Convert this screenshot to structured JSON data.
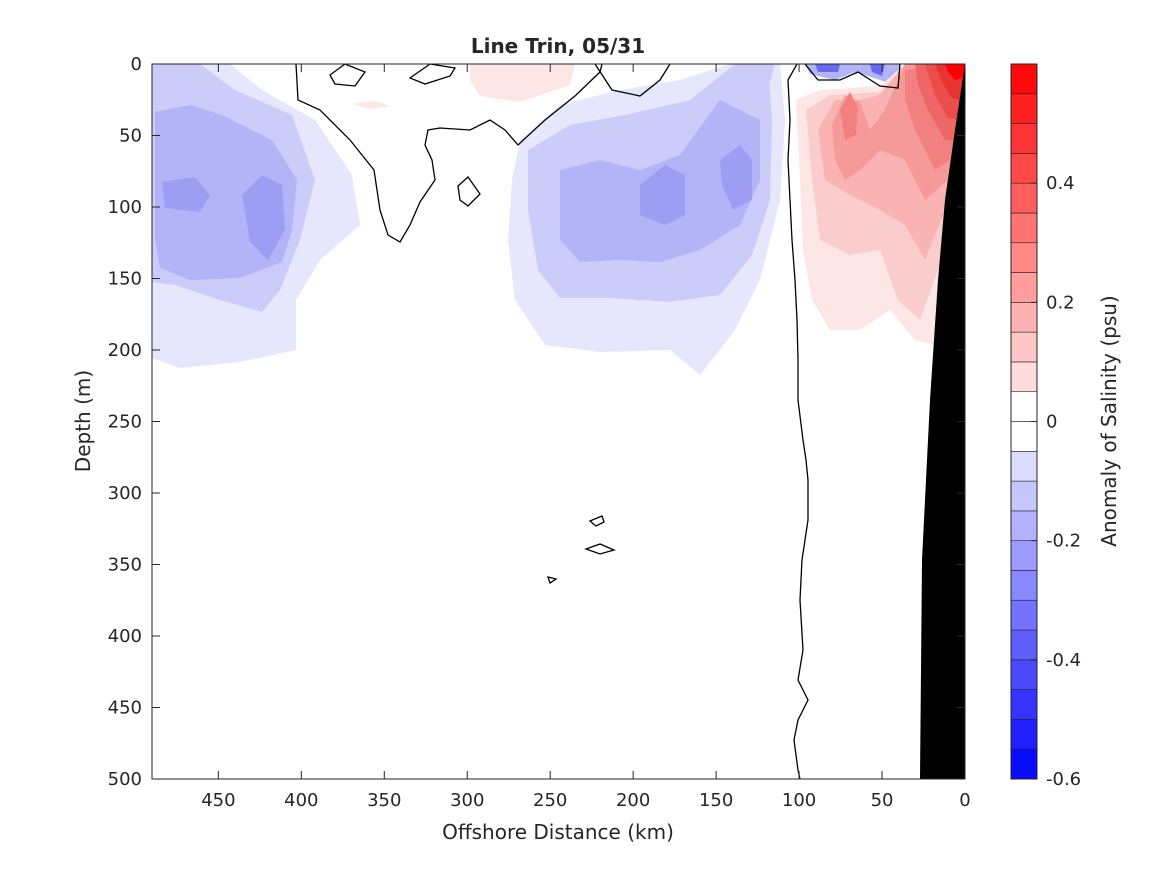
{
  "chart_data": {
    "type": "contour",
    "title": "Line Trin, 05/31",
    "xlabel": "Offshore Distance (km)",
    "ylabel": "Depth (m)",
    "xlim": [
      490,
      0
    ],
    "ylim": [
      500,
      0
    ],
    "xticks": [
      "450",
      "400",
      "350",
      "300",
      "250",
      "200",
      "150",
      "100",
      "50",
      "0"
    ],
    "xtick_values": [
      450,
      400,
      350,
      300,
      250,
      200,
      150,
      100,
      50,
      0
    ],
    "yticks": [
      "0",
      "50",
      "100",
      "150",
      "200",
      "250",
      "300",
      "350",
      "400",
      "450",
      "500"
    ],
    "ytick_values": [
      0,
      50,
      100,
      150,
      200,
      250,
      300,
      350,
      400,
      450,
      500
    ],
    "colorbar": {
      "label": "Anomaly of Salinity (psu)",
      "range": [
        -0.6,
        0.6
      ],
      "step": 0.05,
      "tick_labels": [
        "0.4",
        "0.2",
        "0",
        "-0.2",
        "-0.4",
        "-0.6"
      ],
      "tick_values": [
        0.4,
        0.2,
        0,
        -0.2,
        -0.4,
        -0.6
      ],
      "negative_color": "#0000ff",
      "positive_color": "#ff0000",
      "zero_color": "#ffffff"
    },
    "anomaly_features": [
      {
        "kind": "negative",
        "center_km": 430,
        "center_depth": 100,
        "peak": -0.2
      },
      {
        "kind": "negative",
        "center_km": 180,
        "center_depth": 100,
        "peak": -0.2
      },
      {
        "kind": "negative",
        "center_km": 130,
        "center_depth": 100,
        "peak": -0.2
      },
      {
        "kind": "negative",
        "center_km": 75,
        "center_depth": 5,
        "peak": -0.3
      },
      {
        "kind": "positive",
        "center_km": 70,
        "center_depth": 40,
        "peak": 0.25
      },
      {
        "kind": "positive",
        "center_km": 10,
        "center_depth": 10,
        "peak": 0.55
      },
      {
        "kind": "positive",
        "center_km": 270,
        "center_depth": 10,
        "peak": 0.1
      }
    ],
    "bathymetry_color": "#000000"
  }
}
